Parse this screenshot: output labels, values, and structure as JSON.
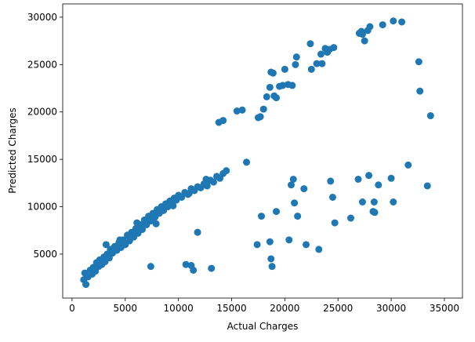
{
  "chart_data": {
    "type": "scatter",
    "xlabel": "Actual Charges",
    "ylabel": "Predicted Charges",
    "color": "#1f77b4",
    "xlim": [
      -880,
      36700
    ],
    "ylim": [
      360,
      31400
    ],
    "xticks": [
      0,
      5000,
      10000,
      15000,
      20000,
      25000,
      30000,
      35000
    ],
    "yticks": [
      5000,
      10000,
      15000,
      20000,
      25000,
      30000
    ],
    "x": [
      1100,
      1200,
      1300,
      1500,
      1700,
      1900,
      2000,
      2200,
      2300,
      2500,
      2600,
      2800,
      3000,
      3100,
      3300,
      3500,
      3600,
      3800,
      4000,
      4200,
      4400,
      4600,
      4800,
      5000,
      5200,
      5400,
      5600,
      5800,
      6000,
      6200,
      6400,
      6600,
      6800,
      7000,
      7200,
      7400,
      7600,
      7800,
      8000,
      8200,
      8400,
      8600,
      8800,
      9000,
      9200,
      9400,
      9600,
      9800,
      10000,
      10300,
      10600,
      10900,
      11200,
      11500,
      11800,
      12100,
      12400,
      12700,
      13000,
      13300,
      13600,
      13900,
      14200,
      14500,
      16400,
      3200,
      4500,
      6100,
      7900,
      9500,
      11000,
      12600,
      13800,
      14200,
      15500,
      16000,
      17500,
      17700,
      18000,
      18300,
      18600,
      18700,
      18900,
      19000,
      19200,
      19500,
      19800,
      20000,
      20300,
      20700,
      21000,
      21100,
      22400,
      22500,
      23000,
      23400,
      23500,
      23800,
      24000,
      24200,
      24600,
      27000,
      27200,
      27300,
      27500,
      27800,
      28000,
      29200,
      30200,
      31000,
      32600,
      32700,
      33700,
      7400,
      10700,
      11200,
      11400,
      11800,
      13100,
      17400,
      17800,
      18600,
      18700,
      18800,
      19200,
      20400,
      20600,
      20800,
      20900,
      21200,
      21800,
      22000,
      23200,
      24300,
      24500,
      24700,
      26200,
      26900,
      27300,
      27900,
      28300,
      28400,
      28800,
      28450,
      30000,
      30200,
      31600,
      33400
    ],
    "values": [
      2300,
      3000,
      1800,
      2600,
      3300,
      2900,
      3600,
      3200,
      4100,
      3700,
      4400,
      3900,
      4700,
      4200,
      5000,
      4600,
      5500,
      5100,
      5800,
      5400,
      6200,
      5700,
      6500,
      6000,
      7000,
      6400,
      7300,
      6800,
      7700,
      7200,
      8100,
      7600,
      8600,
      8100,
      9000,
      8500,
      9300,
      8900,
      9700,
      9300,
      10000,
      9600,
      10300,
      10000,
      10600,
      10400,
      10900,
      10700,
      11200,
      11000,
      11500,
      11300,
      11900,
      11700,
      12100,
      12000,
      12400,
      12200,
      12800,
      12600,
      13200,
      13000,
      13500,
      13800,
      14700,
      6000,
      6500,
      8300,
      8200,
      10100,
      11400,
      12900,
      18900,
      19100,
      20100,
      20200,
      19400,
      19500,
      20300,
      21600,
      22600,
      24200,
      24100,
      21700,
      21500,
      22700,
      22800,
      24500,
      22900,
      22800,
      25000,
      25800,
      27200,
      24500,
      25100,
      26100,
      25100,
      26700,
      26300,
      26600,
      26800,
      28300,
      28500,
      28200,
      27500,
      28600,
      29000,
      29200,
      29600,
      29500,
      25300,
      22200,
      19600,
      3700,
      3900,
      3800,
      3300,
      7300,
      3500,
      6000,
      9000,
      6300,
      4500,
      3700,
      9500,
      6500,
      12300,
      12900,
      10400,
      9000,
      11900,
      6000,
      5500,
      12700,
      11000,
      8300,
      8800,
      12900,
      10500,
      13300,
      9500,
      10500,
      12300,
      9400,
      13000,
      10500,
      14400,
      12200
    ]
  }
}
